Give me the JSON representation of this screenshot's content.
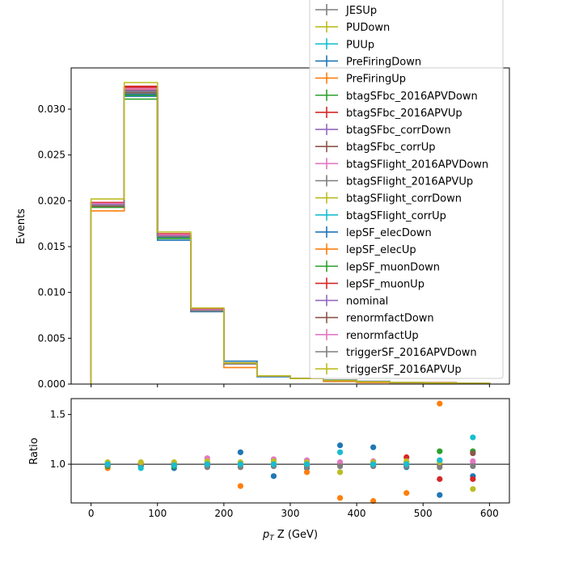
{
  "chart_data": [
    {
      "type": "line",
      "step": true,
      "ylabel": "Events",
      "xlim": [
        -30,
        630
      ],
      "ylim": [
        0,
        0.0345
      ],
      "x_ticks": [
        0,
        100,
        200,
        300,
        400,
        500,
        600
      ],
      "y_ticks": [
        "0.000",
        "0.005",
        "0.010",
        "0.015",
        "0.020",
        "0.025",
        "0.030"
      ],
      "bin_edges": [
        0,
        50,
        100,
        150,
        200,
        250,
        300,
        350,
        400,
        450,
        500,
        550,
        600
      ],
      "series": [
        {
          "name": "JESUp",
          "color": "#7f7f7f",
          "values": [
            0.0193,
            0.0317,
            0.0161,
            0.008,
            0.0022,
            0.0009,
            0.0006,
            0.0004,
            0.00025,
            0.00018,
            0.00012,
            8e-05
          ]
        },
        {
          "name": "PUDown",
          "color": "#bcbd22",
          "values": [
            0.0195,
            0.032,
            0.0162,
            0.0081,
            0.0022,
            0.0009,
            0.0006,
            0.0004,
            0.00025,
            0.00018,
            0.00012,
            8e-05
          ]
        },
        {
          "name": "PUUp",
          "color": "#17becf",
          "values": [
            0.0194,
            0.0318,
            0.0161,
            0.008,
            0.0022,
            0.0009,
            0.0006,
            0.0004,
            0.00025,
            0.00018,
            0.00012,
            9e-05
          ]
        },
        {
          "name": "PreFiringDown",
          "color": "#1f77b4",
          "values": [
            0.0194,
            0.0314,
            0.0157,
            0.0079,
            0.0025,
            0.0008,
            0.0006,
            0.00045,
            0.0003,
            0.00015,
            0.0001,
            8e-05
          ]
        },
        {
          "name": "PreFiringUp",
          "color": "#ff7f0e",
          "values": [
            0.0189,
            0.032,
            0.0163,
            0.0082,
            0.0018,
            0.0009,
            0.0006,
            0.00028,
            0.00017,
            0.00014,
            0.00017,
            8e-05
          ]
        },
        {
          "name": "btagSFbc_2016APVDown",
          "color": "#2ca02c",
          "values": [
            0.0193,
            0.0311,
            0.0159,
            0.008,
            0.0022,
            0.0009,
            0.0006,
            0.0004,
            0.00025,
            0.00018,
            0.00012,
            8e-05
          ]
        },
        {
          "name": "btagSFbc_2016APVUp",
          "color": "#d62728",
          "values": [
            0.0198,
            0.0325,
            0.0164,
            0.0082,
            0.0023,
            0.0009,
            0.0006,
            0.0004,
            0.00025,
            0.00018,
            0.00012,
            8e-05
          ]
        },
        {
          "name": "btagSFbc_corrDown",
          "color": "#9467bd",
          "values": [
            0.0196,
            0.0319,
            0.0161,
            0.008,
            0.0022,
            0.0009,
            0.0006,
            0.0004,
            0.00025,
            0.00018,
            0.00012,
            8e-05
          ]
        },
        {
          "name": "btagSFbc_corrUp",
          "color": "#8c564b",
          "values": [
            0.0195,
            0.0321,
            0.0162,
            0.0081,
            0.0022,
            0.0009,
            0.0006,
            0.0004,
            0.00025,
            0.00018,
            0.00012,
            8e-05
          ]
        },
        {
          "name": "btagSFlight_2016APVDown",
          "color": "#e377c2",
          "values": [
            0.0197,
            0.0323,
            0.0163,
            0.0081,
            0.0022,
            0.0009,
            0.0006,
            0.0004,
            0.00025,
            0.00018,
            0.00012,
            8e-05
          ]
        },
        {
          "name": "btagSFlight_2016APVUp",
          "color": "#7f7f7f",
          "values": [
            0.0194,
            0.0317,
            0.016,
            0.008,
            0.0022,
            0.0009,
            0.0006,
            0.0004,
            0.00025,
            0.00018,
            0.00012,
            8e-05
          ]
        },
        {
          "name": "btagSFlight_corrDown",
          "color": "#bcbd22",
          "values": [
            0.0196,
            0.032,
            0.0162,
            0.0081,
            0.0022,
            0.0009,
            0.0006,
            0.0004,
            0.00025,
            0.00018,
            0.00012,
            8e-05
          ]
        },
        {
          "name": "btagSFlight_corrUp",
          "color": "#17becf",
          "values": [
            0.0195,
            0.0318,
            0.0161,
            0.008,
            0.0022,
            0.0009,
            0.0006,
            0.0004,
            0.00025,
            0.00018,
            0.00012,
            8e-05
          ]
        },
        {
          "name": "lepSF_elecDown",
          "color": "#1f77b4",
          "values": [
            0.0194,
            0.0316,
            0.016,
            0.008,
            0.0022,
            0.0009,
            0.0006,
            0.0004,
            0.00025,
            0.00018,
            0.00012,
            8e-05
          ]
        },
        {
          "name": "lepSF_elecUp",
          "color": "#ff7f0e",
          "values": [
            0.0197,
            0.0322,
            0.0163,
            0.0081,
            0.0022,
            0.0009,
            0.0006,
            0.0004,
            0.00025,
            0.00018,
            0.00012,
            8e-05
          ]
        },
        {
          "name": "lepSF_muonDown",
          "color": "#2ca02c",
          "values": [
            0.0193,
            0.0315,
            0.0159,
            0.008,
            0.0022,
            0.0009,
            0.0006,
            0.0004,
            0.00025,
            0.00018,
            0.00012,
            8e-05
          ]
        },
        {
          "name": "lepSF_muonUp",
          "color": "#d62728",
          "values": [
            0.0198,
            0.0324,
            0.0164,
            0.0082,
            0.0023,
            0.0009,
            0.0006,
            0.0004,
            0.00025,
            0.00018,
            0.00012,
            8e-05
          ]
        },
        {
          "name": "nominal",
          "color": "#9467bd",
          "values": [
            0.0196,
            0.032,
            0.0162,
            0.0081,
            0.0022,
            0.0009,
            0.0006,
            0.0004,
            0.00025,
            0.00018,
            0.00012,
            8e-05
          ]
        },
        {
          "name": "renormfactDown",
          "color": "#8c564b",
          "values": [
            0.0194,
            0.0318,
            0.0161,
            0.008,
            0.0022,
            0.0009,
            0.0006,
            0.0004,
            0.00025,
            0.00018,
            0.00012,
            8e-05
          ]
        },
        {
          "name": "renormfactUp",
          "color": "#e377c2",
          "values": [
            0.0197,
            0.0322,
            0.0163,
            0.0081,
            0.0022,
            0.0009,
            0.0006,
            0.0004,
            0.00025,
            0.00018,
            0.00012,
            8e-05
          ]
        },
        {
          "name": "triggerSF_2016APVDown",
          "color": "#7f7f7f",
          "values": [
            0.0195,
            0.0319,
            0.0161,
            0.008,
            0.0022,
            0.0009,
            0.0006,
            0.0004,
            0.00025,
            0.00018,
            0.00012,
            8e-05
          ]
        },
        {
          "name": "triggerSF_2016APVUp",
          "color": "#bcbd22",
          "values": [
            0.0202,
            0.0329,
            0.0166,
            0.0083,
            0.0023,
            0.0009,
            0.0006,
            0.0004,
            0.00025,
            0.00018,
            0.00012,
            8e-05
          ]
        }
      ]
    },
    {
      "type": "scatter",
      "ylabel": "Ratio",
      "xlabel_main": "p",
      "xlabel_sub": "T",
      "xlabel_rest": " Z (GeV)",
      "xlim": [
        -30,
        630
      ],
      "ylim": [
        0.61,
        1.66
      ],
      "x_ticks": [
        0,
        100,
        200,
        300,
        400,
        500,
        600
      ],
      "y_ticks": [
        "1.0",
        "1.5"
      ],
      "reference_line": 1.0,
      "bin_centers": [
        25,
        75,
        125,
        175,
        225,
        275,
        325,
        375,
        425,
        475,
        525,
        575
      ],
      "points": [
        {
          "color": "#1f77b4",
          "values": [
            0.98,
            0.98,
            0.96,
            0.98,
            1.12,
            0.88,
            0.96,
            1.19,
            1.17,
            0.97,
            0.69,
            0.88
          ]
        },
        {
          "color": "#ff7f0e",
          "values": [
            0.96,
            1.0,
            0.99,
            1.01,
            0.78,
            1.0,
            0.92,
            0.66,
            0.63,
            0.71,
            1.61,
            1.0
          ]
        },
        {
          "color": "#2ca02c",
          "values": [
            0.98,
            0.98,
            0.98,
            0.99,
            1.0,
            0.99,
            0.99,
            1.0,
            0.99,
            1.0,
            1.13,
            1.13
          ]
        },
        {
          "color": "#d62728",
          "values": [
            1.0,
            1.01,
            1.01,
            1.01,
            1.0,
            1.0,
            1.0,
            1.0,
            1.0,
            1.07,
            0.85,
            0.85
          ]
        },
        {
          "color": "#9467bd",
          "values": [
            1.01,
            1.0,
            1.0,
            1.0,
            1.0,
            1.0,
            1.0,
            1.0,
            1.0,
            1.0,
            1.0,
            1.0
          ]
        },
        {
          "color": "#8c564b",
          "values": [
            1.0,
            1.0,
            1.0,
            1.0,
            1.0,
            1.0,
            1.0,
            1.0,
            1.0,
            1.0,
            1.0,
            1.11
          ]
        },
        {
          "color": "#e377c2",
          "values": [
            1.01,
            1.01,
            1.01,
            1.06,
            1.01,
            1.05,
            1.04,
            1.02,
            1.03,
            1.02,
            1.04,
            1.03
          ]
        },
        {
          "color": "#7f7f7f",
          "values": [
            0.99,
            0.99,
            0.99,
            0.97,
            0.97,
            0.98,
            0.97,
            0.98,
            0.98,
            0.98,
            0.97,
            0.98
          ]
        },
        {
          "color": "#bcbd22",
          "values": [
            1.02,
            1.02,
            1.02,
            1.03,
            1.02,
            1.03,
            1.02,
            0.92,
            1.02,
            1.03,
            1.02,
            0.75
          ]
        },
        {
          "color": "#17becf",
          "values": [
            1.0,
            0.96,
            0.99,
            1.0,
            1.0,
            1.0,
            1.0,
            1.12,
            1.0,
            1.0,
            1.04,
            1.27
          ]
        }
      ]
    }
  ]
}
